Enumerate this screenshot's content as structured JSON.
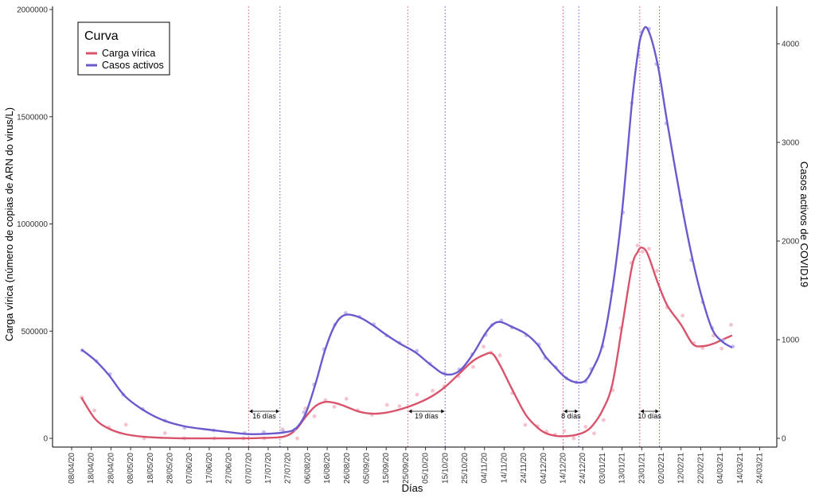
{
  "chart_data": {
    "type": "line",
    "xlabel": "Días",
    "ylabel_left": "Carga vírica (número de copias de ARN do virus/L)",
    "ylabel_right": "Casos activos de COVID19",
    "x_ticks": [
      "08/04/20",
      "18/04/20",
      "28/04/20",
      "08/05/20",
      "18/05/20",
      "28/05/20",
      "07/06/20",
      "17/06/20",
      "27/06/20",
      "07/07/20",
      "17/07/20",
      "27/07/20",
      "06/08/20",
      "16/08/20",
      "26/08/20",
      "05/09/20",
      "15/09/20",
      "25/09/20",
      "05/10/20",
      "15/10/20",
      "25/10/20",
      "04/11/20",
      "14/11/20",
      "24/11/20",
      "04/12/20",
      "14/12/20",
      "24/12/20",
      "03/01/21",
      "13/01/21",
      "23/01/21",
      "02/02/21",
      "12/02/21",
      "22/02/21",
      "04/03/21",
      "14/03/21",
      "24/03/21"
    ],
    "y_left_ticks": [
      "0",
      "500000",
      "1000000",
      "1500000",
      "2000000"
    ],
    "y_left_lim": [
      0,
      2000000
    ],
    "y_right_ticks": [
      "0",
      "1000",
      "2000",
      "3000",
      "4000"
    ],
    "y_right_lim": [
      0,
      4400
    ],
    "grid": false,
    "legend": {
      "title": "Curva",
      "position": "top-left",
      "entries": [
        {
          "label": "Carga vírica",
          "color": "#d9536b"
        },
        {
          "label": "Casos activos",
          "color": "#6a5acd"
        }
      ]
    },
    "series": [
      {
        "name": "Carga vírica",
        "axis": "left",
        "color": "#d9536b",
        "x": [
          "2020-04-13",
          "2020-04-20",
          "2020-04-27",
          "2020-05-05",
          "2020-05-15",
          "2020-05-25",
          "2020-06-05",
          "2020-06-20",
          "2020-07-05",
          "2020-07-15",
          "2020-07-25",
          "2020-07-31",
          "2020-08-05",
          "2020-08-10",
          "2020-08-15",
          "2020-08-20",
          "2020-08-25",
          "2020-09-01",
          "2020-09-08",
          "2020-09-15",
          "2020-09-22",
          "2020-09-30",
          "2020-10-08",
          "2020-10-15",
          "2020-10-22",
          "2020-10-29",
          "2020-11-04",
          "2020-11-08",
          "2020-11-12",
          "2020-11-18",
          "2020-11-25",
          "2020-12-01",
          "2020-12-05",
          "2020-12-10",
          "2020-12-15",
          "2020-12-20",
          "2020-12-25",
          "2020-12-29",
          "2021-01-03",
          "2021-01-08",
          "2021-01-13",
          "2021-01-18",
          "2021-01-21",
          "2021-01-23",
          "2021-01-26",
          "2021-01-31",
          "2021-02-05",
          "2021-02-12",
          "2021-02-18",
          "2021-02-23",
          "2021-02-28",
          "2021-03-05",
          "2021-03-10"
        ],
        "y": [
          190000,
          90000,
          45000,
          20000,
          7000,
          2000,
          0,
          0,
          0,
          2000,
          8000,
          40000,
          100000,
          150000,
          170000,
          165000,
          150000,
          125000,
          115000,
          120000,
          135000,
          160000,
          195000,
          240000,
          300000,
          360000,
          390000,
          395000,
          340000,
          230000,
          110000,
          50000,
          25000,
          12000,
          10000,
          15000,
          30000,
          60000,
          130000,
          250000,
          520000,
          800000,
          870000,
          890000,
          860000,
          730000,
          620000,
          530000,
          440000,
          430000,
          440000,
          460000,
          480000
        ]
      },
      {
        "name": "Casos activos",
        "axis": "right",
        "color": "#6a5acd",
        "x": [
          "2020-04-13",
          "2020-04-20",
          "2020-04-27",
          "2020-05-05",
          "2020-05-15",
          "2020-05-25",
          "2020-06-05",
          "2020-06-20",
          "2020-07-05",
          "2020-07-15",
          "2020-07-25",
          "2020-07-31",
          "2020-08-05",
          "2020-08-10",
          "2020-08-15",
          "2020-08-20",
          "2020-08-25",
          "2020-09-01",
          "2020-09-08",
          "2020-09-15",
          "2020-09-22",
          "2020-09-30",
          "2020-10-08",
          "2020-10-15",
          "2020-10-22",
          "2020-10-29",
          "2020-11-04",
          "2020-11-08",
          "2020-11-12",
          "2020-11-18",
          "2020-11-25",
          "2020-12-01",
          "2020-12-05",
          "2020-12-10",
          "2020-12-15",
          "2020-12-20",
          "2020-12-25",
          "2020-12-29",
          "2021-01-03",
          "2021-01-08",
          "2021-01-13",
          "2021-01-18",
          "2021-01-21",
          "2021-01-23",
          "2021-01-26",
          "2021-01-31",
          "2021-02-05",
          "2021-02-12",
          "2021-02-18",
          "2021-02-23",
          "2021-02-28",
          "2021-03-05",
          "2021-03-10"
        ],
        "y": [
          900,
          790,
          640,
          430,
          280,
          180,
          120,
          80,
          45,
          45,
          60,
          100,
          250,
          550,
          900,
          1150,
          1250,
          1230,
          1150,
          1050,
          960,
          870,
          740,
          650,
          680,
          850,
          1050,
          1150,
          1180,
          1130,
          1060,
          950,
          830,
          720,
          620,
          570,
          580,
          700,
          950,
          1500,
          2300,
          3400,
          3900,
          4100,
          4150,
          3800,
          3200,
          2400,
          1800,
          1400,
          1100,
          980,
          920
        ]
      }
    ],
    "annotations": [
      {
        "label": "16 días"
      },
      {
        "label": "19 días"
      },
      {
        "label": "8 días"
      },
      {
        "label": "10 días"
      }
    ]
  }
}
